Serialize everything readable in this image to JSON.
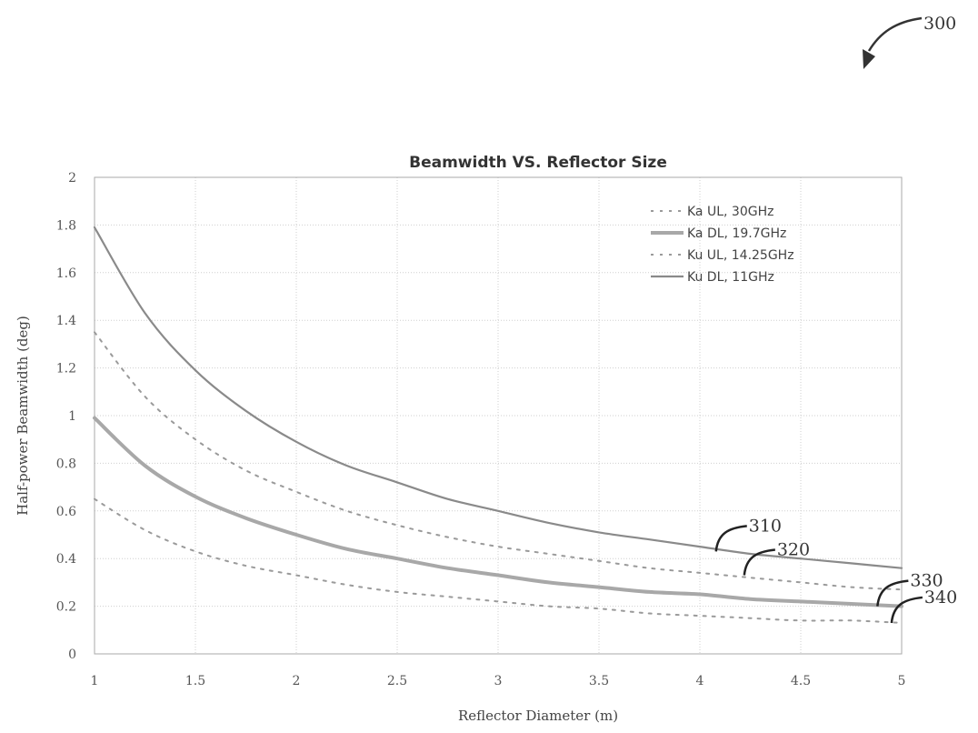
{
  "figure_label": "300",
  "chart_data": {
    "type": "line",
    "title": "Beamwidth VS. Reflector Size",
    "xlabel": "Reflector Diameter (m)",
    "ylabel": "Half-power Beamwidth (deg)",
    "xlim": [
      1,
      5
    ],
    "ylim": [
      0,
      2
    ],
    "xticks": [
      "1",
      "1.5",
      "2",
      "2.5",
      "3",
      "3.5",
      "4",
      "4.5",
      "5"
    ],
    "yticks": [
      "0",
      "0.2",
      "0.4",
      "0.6",
      "0.8",
      "1",
      "1.2",
      "1.4",
      "1.6",
      "1.8",
      "2"
    ],
    "grid": true,
    "legend_position": "top-right",
    "x": [
      1,
      1.25,
      1.5,
      1.75,
      2,
      2.25,
      2.5,
      2.75,
      3,
      3.25,
      3.5,
      3.75,
      4,
      4.25,
      4.5,
      4.75,
      5
    ],
    "series": [
      {
        "name": "Ka UL, 30GHz",
        "style": "dashed",
        "color": "#9a9a9a",
        "values": [
          0.65,
          0.52,
          0.43,
          0.37,
          0.33,
          0.29,
          0.26,
          0.24,
          0.22,
          0.2,
          0.19,
          0.17,
          0.16,
          0.15,
          0.14,
          0.14,
          0.13
        ]
      },
      {
        "name": "Ka DL, 19.7GHz",
        "style": "solid-thick",
        "color": "#a8a8a8",
        "values": [
          0.99,
          0.79,
          0.66,
          0.57,
          0.5,
          0.44,
          0.4,
          0.36,
          0.33,
          0.3,
          0.28,
          0.26,
          0.25,
          0.23,
          0.22,
          0.21,
          0.2
        ]
      },
      {
        "name": "Ku UL, 14.25GHz",
        "style": "dashed",
        "color": "#9a9a9a",
        "values": [
          1.35,
          1.08,
          0.9,
          0.77,
          0.68,
          0.6,
          0.54,
          0.49,
          0.45,
          0.42,
          0.39,
          0.36,
          0.34,
          0.32,
          0.3,
          0.28,
          0.27
        ]
      },
      {
        "name": "Ku DL, 11GHz",
        "style": "solid",
        "color": "#8a8a8a",
        "values": [
          1.79,
          1.43,
          1.19,
          1.02,
          0.89,
          0.79,
          0.72,
          0.65,
          0.6,
          0.55,
          0.51,
          0.48,
          0.45,
          0.42,
          0.4,
          0.38,
          0.36
        ]
      }
    ],
    "annotations": [
      {
        "label": "310",
        "x": 4.08,
        "y": 0.43
      },
      {
        "label": "320",
        "x": 4.22,
        "y": 0.33
      },
      {
        "label": "330",
        "x": 4.88,
        "y": 0.2
      },
      {
        "label": "340",
        "x": 4.95,
        "y": 0.13
      }
    ]
  }
}
